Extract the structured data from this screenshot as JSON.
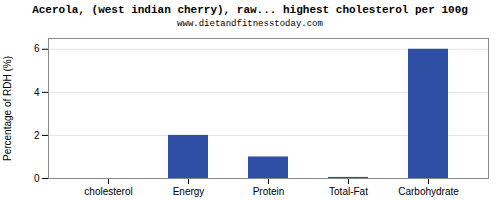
{
  "chart_data": {
    "type": "bar",
    "title": "Acerola, (west indian cherry), raw... highest cholesterol per 100g",
    "subtitle": "www.dietandfitnesstoday.com",
    "categories": [
      "cholesterol",
      "Energy",
      "Protein",
      "Total-Fat",
      "Carbohydrate"
    ],
    "values": [
      0,
      2.0,
      1.0,
      0.05,
      6.0
    ],
    "color": "#2e4fa3",
    "ylabel": "Percentage of RDH (%)",
    "ylim": [
      0,
      6.5
    ],
    "yticks": [
      0,
      2,
      4,
      6
    ],
    "grid": true
  }
}
